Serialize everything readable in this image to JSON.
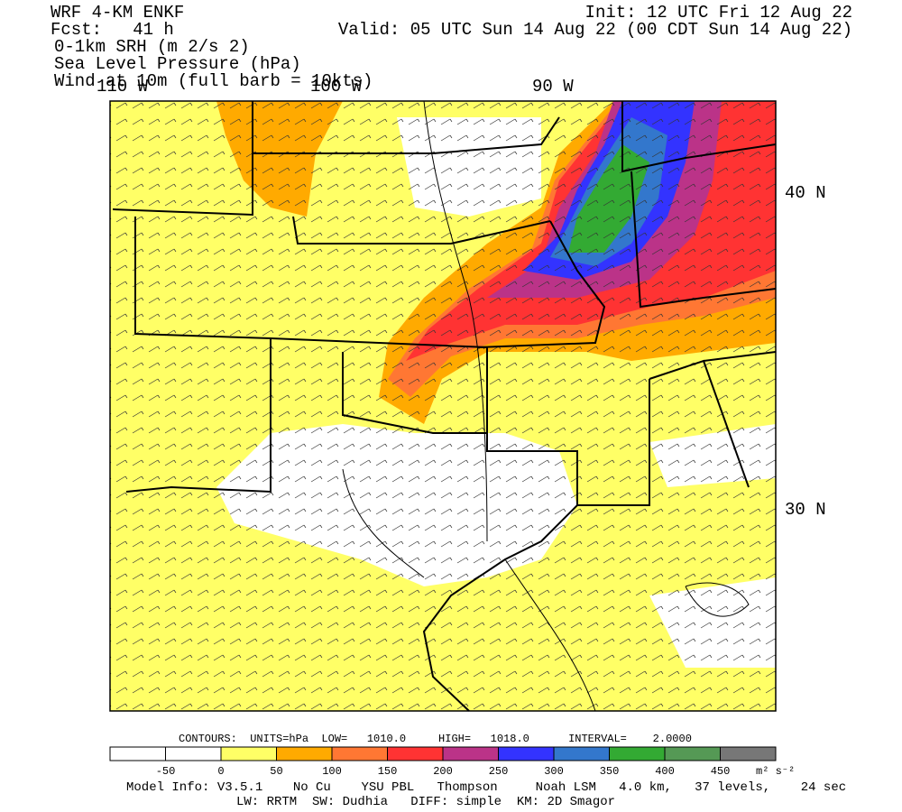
{
  "header": {
    "model": "WRF 4-KM ENKF",
    "forecast": "Fcst:   41 h",
    "fields": [
      "0-1km SRH (m 2/s 2)",
      "Sea Level Pressure (hPa)",
      "Wind at 10m (full barb = 10kts)"
    ],
    "init": "Init: 12 UTC Fri 12 Aug 22",
    "valid": "Valid: 05 UTC Sun 14 Aug 22 (00 CDT Sun 14 Aug 22)"
  },
  "map": {
    "longitudes": [
      "110 W",
      "100 W",
      "90 W"
    ],
    "latitudes": [
      "40 N",
      "30 N"
    ]
  },
  "contours": "CONTOURS:  UNITS=hPa  LOW=   1010.0     HIGH=   1018.0      INTERVAL=    2.0000",
  "colorbar": {
    "labels": [
      -50,
      0,
      50,
      100,
      150,
      200,
      250,
      300,
      350,
      400,
      450
    ],
    "unit": "m² s⁻²",
    "colors": [
      "#ffffff",
      "#ffffff",
      "#ffff66",
      "#ffaa00",
      "#ff7733",
      "#ff3333",
      "#bb3388",
      "#3333ff",
      "#3377cc",
      "#33aa33",
      "#559955",
      "#777777"
    ]
  },
  "footer": [
    "Model Info: V3.5.1    No Cu    YSU PBL   Thompson     Noah LSM   4.0 km,   37 levels,    24 sec",
    "LW: RRTM  SW: Dudhia   DIFF: simple  KM: 2D Smagor"
  ]
}
